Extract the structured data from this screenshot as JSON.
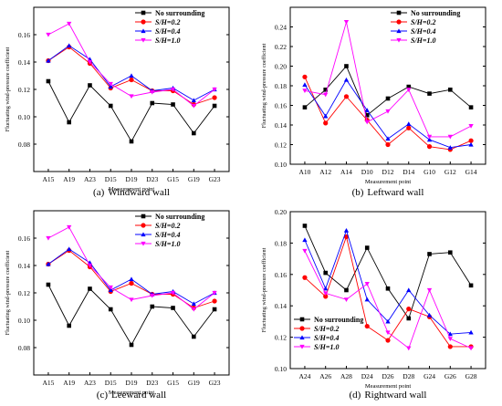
{
  "chart_data": [
    {
      "type": "line",
      "caption_letter": "(a)",
      "caption_text": "Windward wall",
      "xlabel": "Measurement point",
      "ylabel": "Fluctuating wind-pressure coefficient",
      "categories": [
        "A15",
        "A19",
        "A23",
        "D15",
        "D19",
        "D23",
        "G15",
        "G19",
        "G23"
      ],
      "ylim": [
        0.06,
        0.18
      ],
      "yticks": [
        "0.08",
        "0.10",
        "0.12",
        "0.14",
        "0.16"
      ],
      "ytick_values": [
        0.08,
        0.1,
        0.12,
        0.14,
        0.16
      ],
      "legend_position": "top-right",
      "series": [
        {
          "name": "No surrounding",
          "color": "#000000",
          "marker": "square",
          "values": [
            0.126,
            0.096,
            0.123,
            0.108,
            0.082,
            0.11,
            0.109,
            0.088,
            0.108
          ]
        },
        {
          "name": "S/H=0.2",
          "color": "#ff0000",
          "marker": "circle",
          "values": [
            0.141,
            0.151,
            0.139,
            0.121,
            0.127,
            0.119,
            0.119,
            0.109,
            0.114
          ]
        },
        {
          "name": "S/H=0.4",
          "color": "#0000ff",
          "marker": "triangle-up",
          "values": [
            0.141,
            0.152,
            0.142,
            0.122,
            0.13,
            0.119,
            0.121,
            0.112,
            0.12
          ]
        },
        {
          "name": "S/H=1.0",
          "color": "#ff00ff",
          "marker": "triangle-down",
          "values": [
            0.16,
            0.168,
            0.14,
            0.124,
            0.115,
            0.118,
            0.12,
            0.108,
            0.12
          ]
        }
      ]
    },
    {
      "type": "line",
      "caption_letter": "(b)",
      "caption_text": "Leftward wall",
      "xlabel": "Measurement point",
      "ylabel": "Fluctuating wind-pressure coefficient",
      "categories": [
        "A10",
        "A12",
        "A14",
        "D10",
        "D12",
        "D14",
        "G10",
        "G12",
        "G14"
      ],
      "ylim": [
        0.1,
        0.26
      ],
      "yticks": [
        "0.10",
        "0.12",
        "0.14",
        "0.16",
        "0.18",
        "0.20",
        "0.22",
        "0.24"
      ],
      "ytick_values": [
        0.1,
        0.12,
        0.14,
        0.16,
        0.18,
        0.2,
        0.22,
        0.24
      ],
      "legend_position": "top-right",
      "series": [
        {
          "name": "No surrounding",
          "color": "#000000",
          "marker": "square",
          "values": [
            0.158,
            0.176,
            0.2,
            0.15,
            0.167,
            0.179,
            0.172,
            0.176,
            0.158
          ]
        },
        {
          "name": "S/H=0.2",
          "color": "#ff0000",
          "marker": "circle",
          "values": [
            0.189,
            0.142,
            0.169,
            0.145,
            0.12,
            0.137,
            0.118,
            0.115,
            0.124
          ]
        },
        {
          "name": "S/H=0.4",
          "color": "#0000ff",
          "marker": "triangle-up",
          "values": [
            0.181,
            0.149,
            0.186,
            0.155,
            0.126,
            0.141,
            0.125,
            0.117,
            0.12
          ]
        },
        {
          "name": "S/H=1.0",
          "color": "#ff00ff",
          "marker": "triangle-down",
          "values": [
            0.175,
            0.171,
            0.245,
            0.143,
            0.154,
            0.176,
            0.128,
            0.128,
            0.139
          ]
        }
      ]
    },
    {
      "type": "line",
      "caption_letter": "(c)",
      "caption_text": "Leeward wall",
      "xlabel": "Measurement point",
      "ylabel": "Fluctuating wind-pressure coefficient",
      "categories": [
        "A15",
        "A19",
        "A23",
        "D15",
        "D19",
        "D23",
        "G15",
        "G19",
        "G23"
      ],
      "ylim": [
        0.06,
        0.18
      ],
      "yticks": [
        "0.08",
        "0.10",
        "0.12",
        "0.14",
        "0.16"
      ],
      "ytick_values": [
        0.08,
        0.1,
        0.12,
        0.14,
        0.16
      ],
      "legend_position": "top-right",
      "series": [
        {
          "name": "No surrounding",
          "color": "#000000",
          "marker": "square",
          "values": [
            0.126,
            0.096,
            0.123,
            0.108,
            0.082,
            0.11,
            0.109,
            0.088,
            0.108
          ]
        },
        {
          "name": "S/H=0.2",
          "color": "#ff0000",
          "marker": "circle",
          "values": [
            0.141,
            0.151,
            0.139,
            0.121,
            0.127,
            0.119,
            0.119,
            0.109,
            0.114
          ]
        },
        {
          "name": "S/H=0.4",
          "color": "#0000ff",
          "marker": "triangle-up",
          "values": [
            0.141,
            0.152,
            0.142,
            0.122,
            0.13,
            0.119,
            0.121,
            0.112,
            0.12
          ]
        },
        {
          "name": "S/H=1.0",
          "color": "#ff00ff",
          "marker": "triangle-down",
          "values": [
            0.16,
            0.168,
            0.14,
            0.124,
            0.115,
            0.118,
            0.12,
            0.108,
            0.12
          ]
        }
      ]
    },
    {
      "type": "line",
      "caption_letter": "(d)",
      "caption_text": "Rightward wall",
      "xlabel": "Measurement point",
      "ylabel": "Fluctuating wind-pressure coefficient",
      "categories": [
        "A24",
        "A26",
        "A28",
        "D24",
        "D26",
        "D28",
        "G24",
        "G26",
        "G28"
      ],
      "ylim": [
        0.1,
        0.2
      ],
      "yticks": [
        "0.10",
        "0.12",
        "0.14",
        "0.16",
        "0.18",
        "0.20"
      ],
      "ytick_values": [
        0.1,
        0.12,
        0.14,
        0.16,
        0.18,
        0.2
      ],
      "legend_position": "bottom-left",
      "series": [
        {
          "name": "No surrounding",
          "color": "#000000",
          "marker": "square",
          "values": [
            0.191,
            0.161,
            0.15,
            0.177,
            0.151,
            0.132,
            0.173,
            0.174,
            0.153
          ]
        },
        {
          "name": "S/H=0.2",
          "color": "#ff0000",
          "marker": "circle",
          "values": [
            0.158,
            0.146,
            0.184,
            0.127,
            0.118,
            0.138,
            0.133,
            0.114,
            0.114
          ]
        },
        {
          "name": "S/H=0.4",
          "color": "#0000ff",
          "marker": "triangle-up",
          "values": [
            0.182,
            0.151,
            0.188,
            0.144,
            0.13,
            0.15,
            0.134,
            0.122,
            0.123
          ]
        },
        {
          "name": "S/H=1.0",
          "color": "#ff00ff",
          "marker": "triangle-down",
          "values": [
            0.175,
            0.148,
            0.144,
            0.154,
            0.123,
            0.113,
            0.15,
            0.119,
            0.113
          ]
        }
      ]
    }
  ]
}
